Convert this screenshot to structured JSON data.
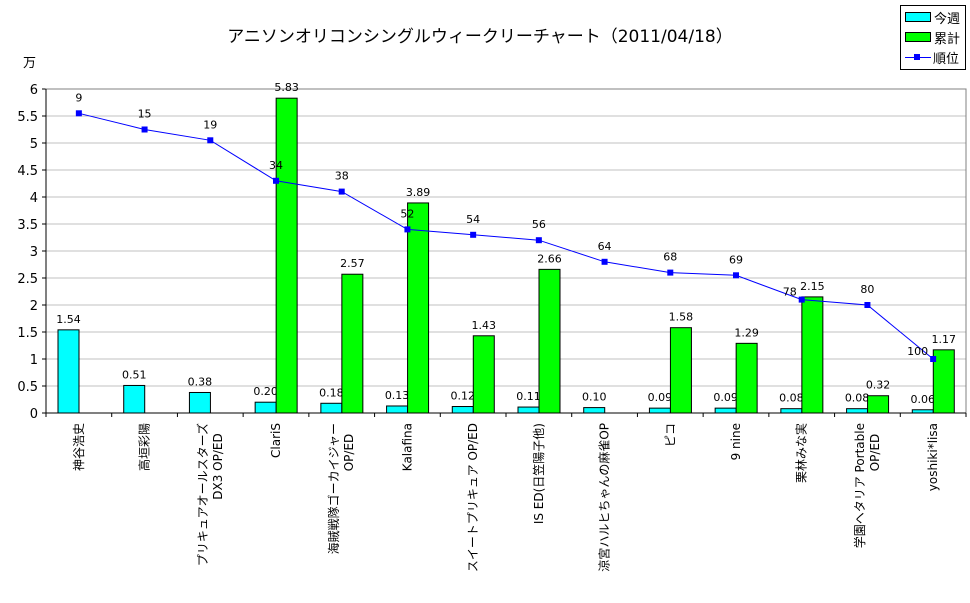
{
  "chart_data": {
    "type": "bar",
    "title": "アニソンオリコンシングルウィークリーチャート（2011/04/18）",
    "ylabel": "万",
    "ylim": [
      0,
      6
    ],
    "yticks": [
      "0",
      "0.5",
      "1",
      "1.5",
      "2",
      "2.5",
      "3",
      "3.5",
      "4",
      "4.5",
      "5",
      "5.5",
      "6"
    ],
    "secondary_ylim_reversed": [
      0,
      120
    ],
    "grid": true,
    "legend": "top-right",
    "categories": [
      "神谷浩史",
      "高垣彩陽",
      "プリキュアオールスターズ\nDX3 OP/ED",
      "ClariS",
      "海賊戦隊ゴーカイジャー\nOP/ED",
      "Kalafina",
      "スイートプリキュア OP/ED",
      "IS ED(日笠陽子他)",
      "涼宮ハルヒちゃんの麻雀OP",
      "ピコ",
      "9 nine",
      "栗林みな実",
      "学園ヘタリア Portable\nOP/ED",
      "yoshiki*lisa"
    ],
    "series": [
      {
        "name": "今週",
        "type": "bar",
        "color": "#00ffff",
        "values": [
          1.54,
          0.51,
          0.38,
          0.2,
          0.18,
          0.13,
          0.12,
          0.11,
          0.1,
          0.09,
          0.09,
          0.08,
          0.08,
          0.06
        ],
        "labels": [
          "1.54",
          "0.51",
          "0.38",
          "0.20",
          "0.18",
          "0.13",
          "0.12",
          "0.11",
          "0.10",
          "0.09",
          "0.09",
          "0.08",
          "0.08",
          "0.06"
        ]
      },
      {
        "name": "累計",
        "type": "bar",
        "color": "#00ff00",
        "values": [
          null,
          null,
          null,
          5.83,
          2.57,
          3.89,
          1.43,
          2.66,
          null,
          1.58,
          1.29,
          2.15,
          0.32,
          1.17
        ],
        "labels": [
          null,
          null,
          null,
          "5.83",
          "2.57",
          "3.89",
          "1.43",
          "2.66",
          null,
          "1.58",
          "1.29",
          "2.15",
          "0.32",
          "1.17"
        ]
      },
      {
        "name": "順位",
        "type": "line",
        "color": "#0000ff",
        "values": [
          9,
          15,
          19,
          34,
          38,
          52,
          54,
          56,
          64,
          68,
          69,
          78,
          80,
          100
        ]
      }
    ]
  }
}
